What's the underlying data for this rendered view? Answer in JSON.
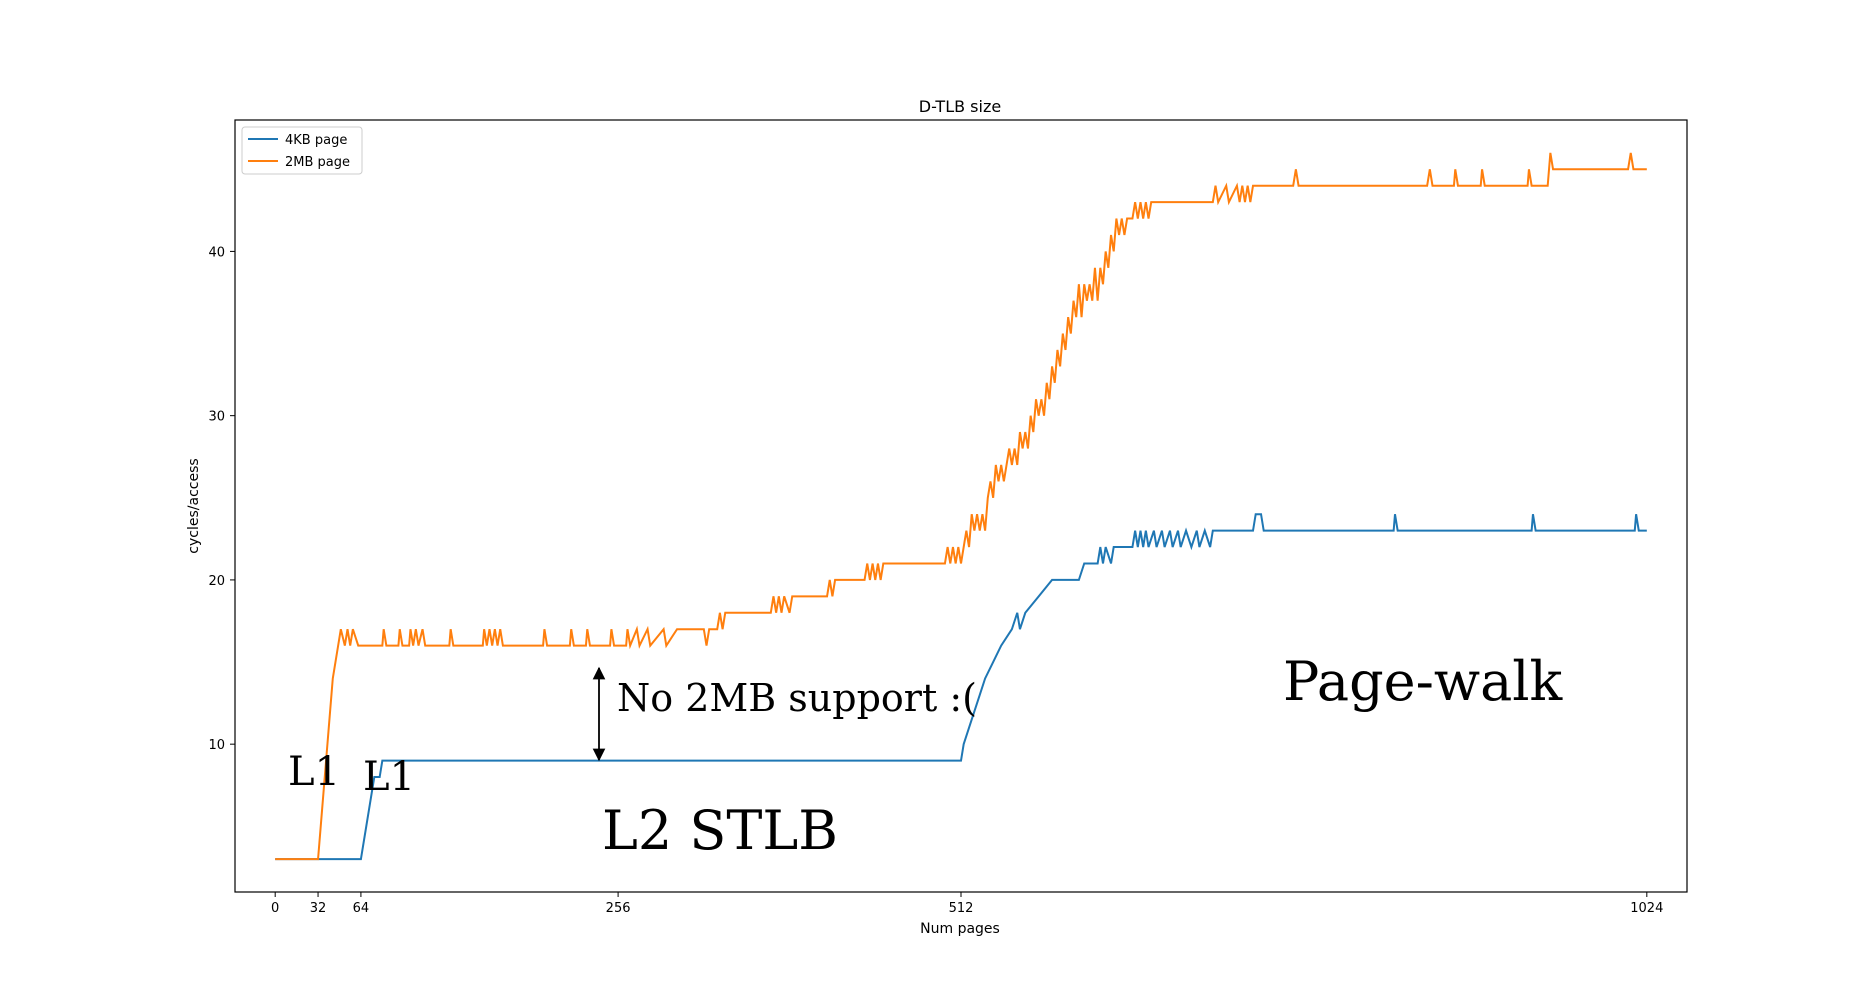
{
  "chart_data": {
    "type": "line",
    "title": "D-TLB size",
    "xlabel": "Num pages",
    "ylabel": "cycles/access",
    "xlim": [
      -30,
      1054
    ],
    "ylim": [
      1,
      48
    ],
    "xticks": [
      0,
      32,
      64,
      256,
      512,
      1024
    ],
    "yticks": [
      10,
      20,
      30,
      40
    ],
    "grid": false,
    "legend_position": "top-left",
    "series": [
      {
        "name": "4KB page",
        "color": "#1f77b4",
        "points": [
          [
            0,
            3
          ],
          [
            32,
            3
          ],
          [
            64,
            3
          ],
          [
            66,
            4
          ],
          [
            68,
            5
          ],
          [
            70,
            6
          ],
          [
            72,
            7
          ],
          [
            74,
            8
          ],
          [
            78,
            8
          ],
          [
            80,
            9
          ],
          [
            512,
            9
          ],
          [
            514,
            10
          ],
          [
            518,
            11
          ],
          [
            522,
            12
          ],
          [
            526,
            13
          ],
          [
            530,
            14
          ],
          [
            536,
            15
          ],
          [
            542,
            16
          ],
          [
            550,
            17
          ],
          [
            554,
            18
          ],
          [
            556,
            17
          ],
          [
            560,
            18
          ],
          [
            570,
            19
          ],
          [
            580,
            20
          ],
          [
            600,
            20
          ],
          [
            604,
            21
          ],
          [
            614,
            21
          ],
          [
            616,
            22
          ],
          [
            618,
            21
          ],
          [
            620,
            22
          ],
          [
            624,
            21
          ],
          [
            626,
            22
          ],
          [
            640,
            22
          ],
          [
            642,
            23
          ],
          [
            644,
            22
          ],
          [
            646,
            23
          ],
          [
            648,
            22
          ],
          [
            650,
            23
          ],
          [
            652,
            22
          ],
          [
            656,
            23
          ],
          [
            658,
            22
          ],
          [
            662,
            23
          ],
          [
            664,
            22
          ],
          [
            668,
            23
          ],
          [
            670,
            22
          ],
          [
            674,
            23
          ],
          [
            676,
            22
          ],
          [
            680,
            23
          ],
          [
            684,
            22
          ],
          [
            688,
            23
          ],
          [
            690,
            22
          ],
          [
            694,
            23
          ],
          [
            698,
            22
          ],
          [
            700,
            23
          ],
          [
            730,
            23
          ],
          [
            732,
            24
          ],
          [
            736,
            24
          ],
          [
            738,
            23
          ],
          [
            835,
            23
          ],
          [
            836,
            24
          ],
          [
            838,
            23
          ],
          [
            938,
            23
          ],
          [
            939,
            24
          ],
          [
            941,
            23
          ],
          [
            1015,
            23
          ],
          [
            1016,
            24
          ],
          [
            1018,
            23
          ],
          [
            1024,
            23
          ]
        ]
      },
      {
        "name": "2MB page",
        "color": "#ff7f0e",
        "points": [
          [
            0,
            3
          ],
          [
            32,
            3
          ],
          [
            33,
            4
          ],
          [
            34,
            5
          ],
          [
            35,
            6
          ],
          [
            36,
            7
          ],
          [
            37,
            8
          ],
          [
            38,
            9
          ],
          [
            39,
            10
          ],
          [
            40,
            11
          ],
          [
            41,
            12
          ],
          [
            42,
            13
          ],
          [
            43,
            14
          ],
          [
            45,
            15
          ],
          [
            47,
            16
          ],
          [
            49,
            17
          ],
          [
            52,
            16
          ],
          [
            54,
            17
          ],
          [
            56,
            16
          ],
          [
            58,
            17
          ],
          [
            62,
            16
          ],
          [
            80,
            16
          ],
          [
            81,
            17
          ],
          [
            83,
            16
          ],
          [
            92,
            16
          ],
          [
            93,
            17
          ],
          [
            95,
            16
          ],
          [
            100,
            16
          ],
          [
            101,
            17
          ],
          [
            103,
            16
          ],
          [
            105,
            17
          ],
          [
            107,
            16
          ],
          [
            110,
            17
          ],
          [
            112,
            16
          ],
          [
            130,
            16
          ],
          [
            131,
            17
          ],
          [
            133,
            16
          ],
          [
            155,
            16
          ],
          [
            156,
            17
          ],
          [
            158,
            16
          ],
          [
            160,
            17
          ],
          [
            162,
            16
          ],
          [
            164,
            17
          ],
          [
            166,
            16
          ],
          [
            168,
            17
          ],
          [
            170,
            16
          ],
          [
            200,
            16
          ],
          [
            201,
            17
          ],
          [
            203,
            16
          ],
          [
            220,
            16
          ],
          [
            221,
            17
          ],
          [
            223,
            16
          ],
          [
            232,
            16
          ],
          [
            233,
            17
          ],
          [
            235,
            16
          ],
          [
            250,
            16
          ],
          [
            251,
            17
          ],
          [
            253,
            16
          ],
          [
            262,
            16
          ],
          [
            263,
            17
          ],
          [
            265,
            16
          ],
          [
            270,
            17
          ],
          [
            272,
            16
          ],
          [
            278,
            17
          ],
          [
            280,
            16
          ],
          [
            290,
            17
          ],
          [
            292,
            16
          ],
          [
            300,
            17
          ],
          [
            320,
            17
          ],
          [
            322,
            16
          ],
          [
            324,
            17
          ],
          [
            330,
            17
          ],
          [
            332,
            18
          ],
          [
            334,
            17
          ],
          [
            336,
            18
          ],
          [
            370,
            18
          ],
          [
            372,
            19
          ],
          [
            374,
            18
          ],
          [
            376,
            19
          ],
          [
            378,
            18
          ],
          [
            380,
            19
          ],
          [
            384,
            18
          ],
          [
            386,
            19
          ],
          [
            412,
            19
          ],
          [
            414,
            20
          ],
          [
            416,
            19
          ],
          [
            418,
            20
          ],
          [
            440,
            20
          ],
          [
            442,
            21
          ],
          [
            444,
            20
          ],
          [
            446,
            21
          ],
          [
            448,
            20
          ],
          [
            450,
            21
          ],
          [
            452,
            20
          ],
          [
            454,
            21
          ],
          [
            500,
            21
          ],
          [
            502,
            22
          ],
          [
            504,
            21
          ],
          [
            506,
            22
          ],
          [
            508,
            21
          ],
          [
            510,
            22
          ],
          [
            512,
            21
          ],
          [
            514,
            22
          ],
          [
            516,
            23
          ],
          [
            518,
            22
          ],
          [
            520,
            24
          ],
          [
            522,
            23
          ],
          [
            524,
            24
          ],
          [
            526,
            23
          ],
          [
            528,
            24
          ],
          [
            530,
            23
          ],
          [
            532,
            25
          ],
          [
            534,
            26
          ],
          [
            536,
            25
          ],
          [
            538,
            27
          ],
          [
            540,
            26
          ],
          [
            542,
            27
          ],
          [
            544,
            26
          ],
          [
            546,
            27
          ],
          [
            548,
            28
          ],
          [
            550,
            27
          ],
          [
            552,
            28
          ],
          [
            554,
            27
          ],
          [
            556,
            29
          ],
          [
            558,
            28
          ],
          [
            560,
            29
          ],
          [
            562,
            28
          ],
          [
            564,
            30
          ],
          [
            566,
            29
          ],
          [
            568,
            31
          ],
          [
            570,
            30
          ],
          [
            572,
            31
          ],
          [
            574,
            30
          ],
          [
            576,
            32
          ],
          [
            578,
            31
          ],
          [
            580,
            33
          ],
          [
            582,
            32
          ],
          [
            584,
            34
          ],
          [
            586,
            33
          ],
          [
            588,
            35
          ],
          [
            590,
            34
          ],
          [
            592,
            36
          ],
          [
            594,
            35
          ],
          [
            596,
            37
          ],
          [
            598,
            36
          ],
          [
            600,
            38
          ],
          [
            602,
            36
          ],
          [
            604,
            38
          ],
          [
            606,
            37
          ],
          [
            608,
            38
          ],
          [
            610,
            37
          ],
          [
            612,
            39
          ],
          [
            614,
            37
          ],
          [
            616,
            39
          ],
          [
            618,
            38
          ],
          [
            620,
            40
          ],
          [
            622,
            39
          ],
          [
            624,
            41
          ],
          [
            626,
            40
          ],
          [
            628,
            42
          ],
          [
            630,
            41
          ],
          [
            632,
            42
          ],
          [
            634,
            41
          ],
          [
            636,
            42
          ],
          [
            640,
            42
          ],
          [
            642,
            43
          ],
          [
            644,
            42
          ],
          [
            646,
            43
          ],
          [
            648,
            42
          ],
          [
            650,
            43
          ],
          [
            652,
            42
          ],
          [
            654,
            43
          ],
          [
            700,
            43
          ],
          [
            702,
            44
          ],
          [
            704,
            43
          ],
          [
            710,
            44
          ],
          [
            712,
            43
          ],
          [
            718,
            44
          ],
          [
            720,
            43
          ],
          [
            722,
            44
          ],
          [
            724,
            43
          ],
          [
            726,
            44
          ],
          [
            728,
            43
          ],
          [
            730,
            44
          ],
          [
            760,
            44
          ],
          [
            762,
            45
          ],
          [
            764,
            44
          ],
          [
            860,
            44
          ],
          [
            862,
            45
          ],
          [
            864,
            44
          ],
          [
            880,
            44
          ],
          [
            881,
            45
          ],
          [
            883,
            44
          ],
          [
            900,
            44
          ],
          [
            901,
            45
          ],
          [
            903,
            44
          ],
          [
            935,
            44
          ],
          [
            936,
            45
          ],
          [
            938,
            44
          ],
          [
            950,
            44
          ],
          [
            952,
            46
          ],
          [
            954,
            45
          ],
          [
            1010,
            45
          ],
          [
            1012,
            46
          ],
          [
            1014,
            45
          ],
          [
            1024,
            45
          ]
        ]
      }
    ]
  },
  "annotations": {
    "l1_2mb": "L1",
    "l1_4kb": "L1",
    "l2_stlb": "L2 STLB",
    "no_2mb_support": "No 2MB support :(",
    "page_walk": "Page-walk"
  }
}
